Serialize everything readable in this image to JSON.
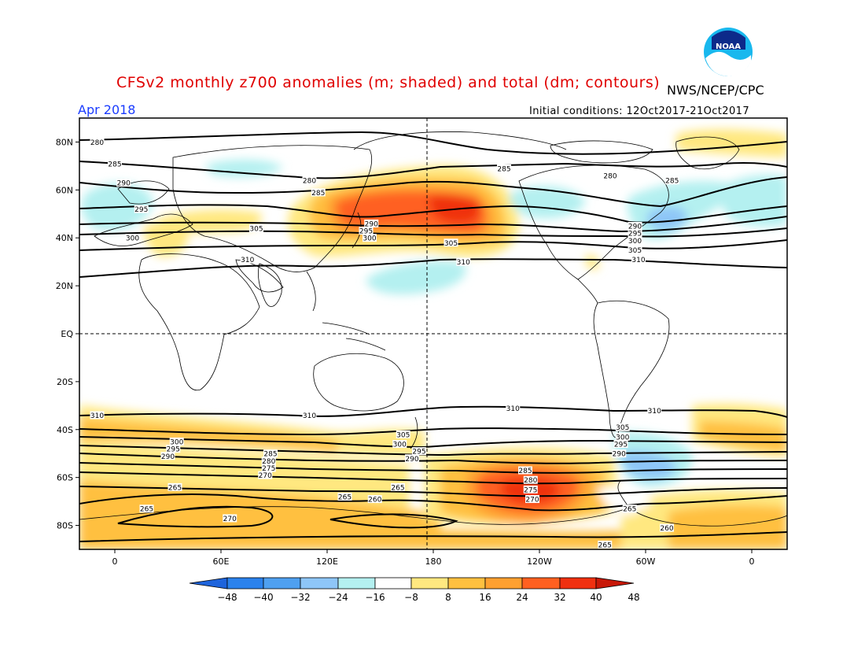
{
  "header": {
    "title": "CFSv2 monthly z700 anomalies (m; shaded) and total (dm; contours)",
    "agency": "NWS/NCEP/CPC",
    "month": "Apr 2018",
    "initial_conditions": "Initial conditions: 12Oct2017-21Oct2017",
    "logo_text": "NOAA"
  },
  "axes": {
    "lat_labels": [
      "80N",
      "60N",
      "40N",
      "20N",
      "EQ",
      "20S",
      "40S",
      "60S",
      "80S"
    ],
    "lat_values": [
      80,
      60,
      40,
      20,
      0,
      -20,
      -40,
      -60,
      -80
    ],
    "lon_labels": [
      "0",
      "60E",
      "120E",
      "180",
      "120W",
      "60W",
      "0"
    ],
    "lon_values": [
      0,
      60,
      120,
      180,
      240,
      300,
      360
    ],
    "lon_range": [
      -20,
      380
    ],
    "lat_range": [
      -90,
      90
    ]
  },
  "colorbar": {
    "ticks": [
      "-48",
      "-40",
      "-32",
      "-24",
      "-16",
      "-8",
      "8",
      "16",
      "24",
      "32",
      "40",
      "48"
    ],
    "colors": [
      "#1e64dc",
      "#2b82ec",
      "#4fa0f0",
      "#8ec6f8",
      "#b4f0f0",
      "#ffffff",
      "#ffe880",
      "#ffc040",
      "#ffa030",
      "#ff6020",
      "#f03010",
      "#c81808"
    ]
  },
  "contour_labels": [
    {
      "text": "280",
      "lon": -10,
      "lat": 80
    },
    {
      "text": "285",
      "lon": 0,
      "lat": 71
    },
    {
      "text": "290",
      "lon": 5,
      "lat": 63
    },
    {
      "text": "295",
      "lon": 15,
      "lat": 52
    },
    {
      "text": "300",
      "lon": 10,
      "lat": 40
    },
    {
      "text": "305",
      "lon": 80,
      "lat": 44
    },
    {
      "text": "310",
      "lon": 75,
      "lat": 31
    },
    {
      "text": "280",
      "lon": 110,
      "lat": 64
    },
    {
      "text": "285",
      "lon": 115,
      "lat": 59
    },
    {
      "text": "290",
      "lon": 145,
      "lat": 46
    },
    {
      "text": "295",
      "lon": 142,
      "lat": 43
    },
    {
      "text": "300",
      "lon": 144,
      "lat": 40
    },
    {
      "text": "305",
      "lon": 190,
      "lat": 38
    },
    {
      "text": "310",
      "lon": 197,
      "lat": 30
    },
    {
      "text": "285",
      "lon": 220,
      "lat": 69
    },
    {
      "text": "280",
      "lon": 280,
      "lat": 66
    },
    {
      "text": "285",
      "lon": 315,
      "lat": 64
    },
    {
      "text": "290",
      "lon": 294,
      "lat": 45
    },
    {
      "text": "295",
      "lon": 294,
      "lat": 42
    },
    {
      "text": "300",
      "lon": 294,
      "lat": 39
    },
    {
      "text": "305",
      "lon": 294,
      "lat": 35
    },
    {
      "text": "310",
      "lon": 296,
      "lat": 31
    },
    {
      "text": "310",
      "lon": -10,
      "lat": -34
    },
    {
      "text": "310",
      "lon": 110,
      "lat": -34
    },
    {
      "text": "310",
      "lon": 225,
      "lat": -31
    },
    {
      "text": "310",
      "lon": 305,
      "lat": -32
    },
    {
      "text": "305",
      "lon": 163,
      "lat": -42
    },
    {
      "text": "300",
      "lon": 161,
      "lat": -46
    },
    {
      "text": "295",
      "lon": 172,
      "lat": -49
    },
    {
      "text": "290",
      "lon": 168,
      "lat": -52
    },
    {
      "text": "300",
      "lon": 35,
      "lat": -45
    },
    {
      "text": "295",
      "lon": 33,
      "lat": -48
    },
    {
      "text": "290",
      "lon": 30,
      "lat": -51
    },
    {
      "text": "285",
      "lon": 88,
      "lat": -50
    },
    {
      "text": "280",
      "lon": 87,
      "lat": -53
    },
    {
      "text": "275",
      "lon": 87,
      "lat": -56
    },
    {
      "text": "270",
      "lon": 85,
      "lat": -59
    },
    {
      "text": "305",
      "lon": 287,
      "lat": -39
    },
    {
      "text": "300",
      "lon": 287,
      "lat": -43
    },
    {
      "text": "295",
      "lon": 286,
      "lat": -46
    },
    {
      "text": "290",
      "lon": 285,
      "lat": -50
    },
    {
      "text": "285",
      "lon": 232,
      "lat": -57
    },
    {
      "text": "280",
      "lon": 235,
      "lat": -61
    },
    {
      "text": "275",
      "lon": 235,
      "lat": -65
    },
    {
      "text": "270",
      "lon": 236,
      "lat": -69
    },
    {
      "text": "265",
      "lon": 34,
      "lat": -64
    },
    {
      "text": "265",
      "lon": 18,
      "lat": -73
    },
    {
      "text": "265",
      "lon": 130,
      "lat": -68
    },
    {
      "text": "265",
      "lon": 160,
      "lat": -64
    },
    {
      "text": "260",
      "lon": 147,
      "lat": -69
    },
    {
      "text": "270",
      "lon": 65,
      "lat": -77
    },
    {
      "text": "265",
      "lon": 291,
      "lat": -73
    },
    {
      "text": "260",
      "lon": 312,
      "lat": -81
    },
    {
      "text": "265",
      "lon": 277,
      "lat": -88
    }
  ]
}
